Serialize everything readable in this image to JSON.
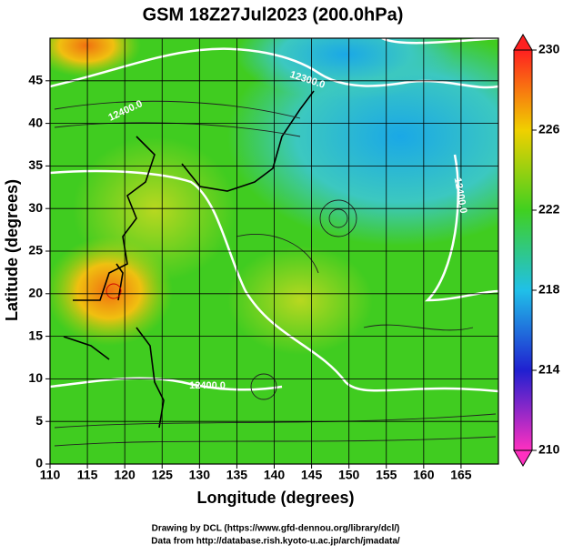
{
  "chart_data": {
    "type": "contour",
    "title": "GSM 18Z27Jul2023 (200.0hPa)",
    "x_label": "Longitude (degrees)",
    "y_label": "Latitude (degrees)",
    "xlim": [
      110,
      170
    ],
    "xticks": [
      110,
      115,
      120,
      125,
      130,
      135,
      140,
      145,
      150,
      155,
      160,
      165
    ],
    "ylim": [
      0,
      50
    ],
    "yticks": [
      0,
      5,
      10,
      15,
      20,
      25,
      30,
      35,
      40,
      45
    ],
    "grid": true,
    "colorbar": {
      "lim": [
        210,
        230
      ],
      "ticks": [
        210,
        214,
        218,
        222,
        226,
        230
      ]
    },
    "contour_labels": [
      "12300.0",
      "12400.0",
      "12400.0",
      "12400.0"
    ],
    "credits": [
      "Drawing by DCL (https://www.gfd-dennou.org/library/dcl/)",
      "Data from http://database.rish.kyoto-u.ac.jp/arch/jmadata/"
    ]
  }
}
